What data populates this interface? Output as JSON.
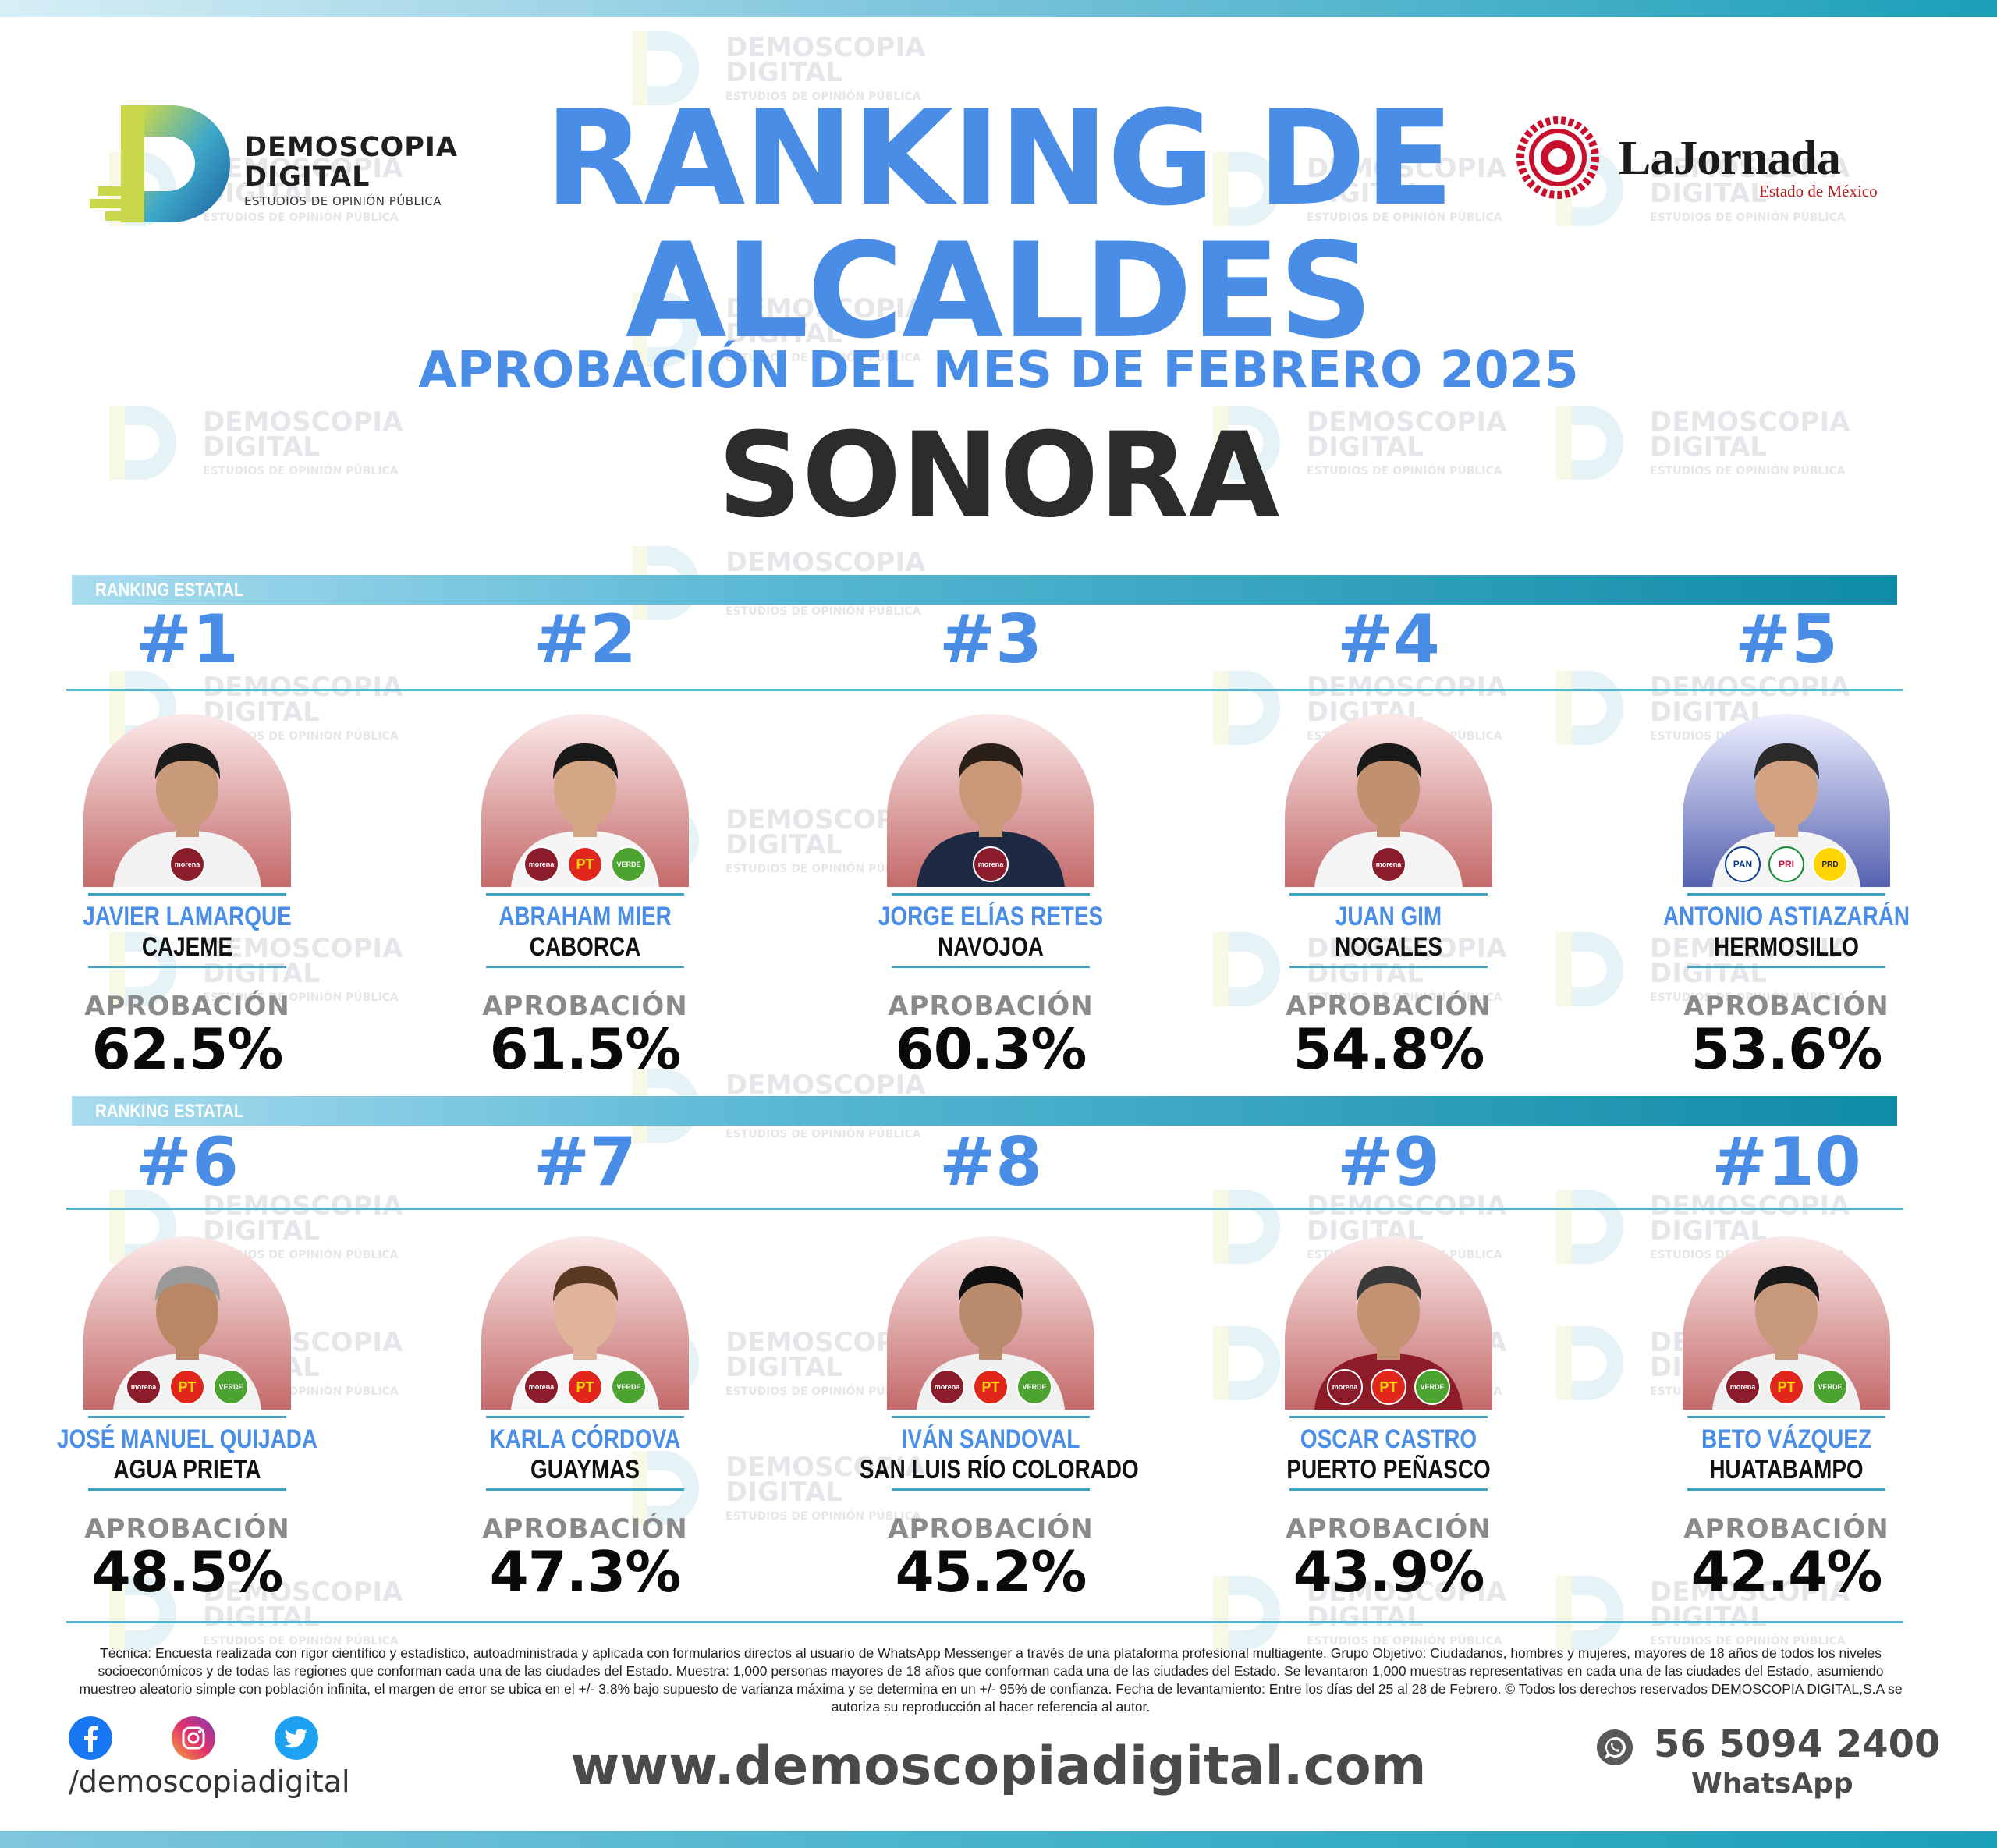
{
  "brand": {
    "name_line1": "DEMOSCOPIA",
    "name_line2": "DIGITAL",
    "tagline": "ESTUDIOS DE OPINIÓN PÚBLICA",
    "partner_name": "LaJornada",
    "partner_sub": "Estado de México"
  },
  "header": {
    "title_line1": "RANKING DE",
    "title_line2": "ALCALDES",
    "subtitle": "APROBACIÓN DEL MES DE FEBRERO 2025",
    "state": "SONORA"
  },
  "sections": [
    {
      "label": "RANKING ESTATAL"
    },
    {
      "label": "RANKING ESTATAL"
    }
  ],
  "approval_label": "APROBACIÓN",
  "mayors": [
    {
      "rank": "#1",
      "name": "JAVIER LAMARQUE",
      "city": "CAJEME",
      "approval": "62.5%",
      "approval_value": 62.5,
      "parties": [
        "morena"
      ],
      "bg": "#c46a6a"
    },
    {
      "rank": "#2",
      "name": "ABRAHAM MIER",
      "city": "CABORCA",
      "approval": "61.5%",
      "approval_value": 61.5,
      "parties": [
        "morena",
        "PT",
        "VERDE"
      ],
      "bg": "#c46a6a"
    },
    {
      "rank": "#3",
      "name": "JORGE ELÍAS RETES",
      "city": "NAVOJOA",
      "approval": "60.3%",
      "approval_value": 60.3,
      "parties": [
        "morena"
      ],
      "bg": "#c46a6a"
    },
    {
      "rank": "#4",
      "name": "JUAN GIM",
      "city": "NOGALES",
      "approval": "54.8%",
      "approval_value": 54.8,
      "parties": [
        "morena"
      ],
      "bg": "#c46a6a"
    },
    {
      "rank": "#5",
      "name": "ANTONIO ASTIAZARÁN",
      "city": "HERMOSILLO",
      "approval": "53.6%",
      "approval_value": 53.6,
      "parties": [
        "PAN",
        "PRI",
        "PRD"
      ],
      "bg": "#5561b0"
    },
    {
      "rank": "#6",
      "name": "JOSÉ MANUEL QUIJADA",
      "city": "AGUA PRIETA",
      "approval": "48.5%",
      "approval_value": 48.5,
      "parties": [
        "morena",
        "PT",
        "VERDE"
      ],
      "bg": "#c46a6a"
    },
    {
      "rank": "#7",
      "name": "KARLA CÓRDOVA",
      "city": "GUAYMAS",
      "approval": "47.3%",
      "approval_value": 47.3,
      "parties": [
        "morena",
        "PT",
        "VERDE"
      ],
      "bg": "#c46a6a"
    },
    {
      "rank": "#8",
      "name": "IVÁN SANDOVAL",
      "city": "SAN LUIS RÍO COLORADO",
      "approval": "45.2%",
      "approval_value": 45.2,
      "parties": [
        "morena",
        "PT",
        "VERDE"
      ],
      "bg": "#c46a6a"
    },
    {
      "rank": "#9",
      "name": "OSCAR CASTRO",
      "city": "PUERTO PEÑASCO",
      "approval": "43.9%",
      "approval_value": 43.9,
      "parties": [
        "morena",
        "PT",
        "VERDE"
      ],
      "bg": "#c46a6a"
    },
    {
      "rank": "#10",
      "name": "BETO VÁZQUEZ",
      "city": "HUATABAMPO",
      "approval": "42.4%",
      "approval_value": 42.4,
      "parties": [
        "morena",
        "PT",
        "VERDE"
      ],
      "bg": "#c46a6a"
    }
  ],
  "methodology": "Técnica: Encuesta realizada con rigor científico y estadístico, autoadministrada y aplicada con formularios directos al usuario de WhatsApp Messenger a través de una plataforma profesional multiagente. Grupo Objetivo: Ciudadanos, hombres y mujeres, mayores de 18 años de todos los niveles socioeconómicos y de todas las regiones que conforman cada una de las ciudades del Estado. Muestra: 1,000 personas mayores de 18 años que conforman cada una de las ciudades del Estado. Se levantaron 1,000 muestras representativas en cada una de las ciudades del Estado, asumiendo muestreo aleatorio simple con población infinita, el margen de error se ubica en el +/- 3.8% bajo supuesto de varianza máxima y se determina en un +/- 95% de confianza. Fecha de levantamiento: Entre los días del 25 al 28 de Febrero. © Todos los derechos reservados DEMOSCOPIA DIGITAL,S.A se autoriza su reproducción al hacer referencia al autor.",
  "footer": {
    "social_handle": "/demoscopiadigital",
    "website": "www.demoscopiadigital.com",
    "phone": "56 5094 2400",
    "phone_label": "WhatsApp",
    "icons": [
      "facebook-icon",
      "instagram-icon",
      "twitter-icon",
      "whatsapp-icon"
    ]
  },
  "colors": {
    "accent_blue": "#4a8de6",
    "teal": "#1aa0b8",
    "dark_text": "#2c2c2c",
    "gray_label": "#8a8a8a"
  }
}
